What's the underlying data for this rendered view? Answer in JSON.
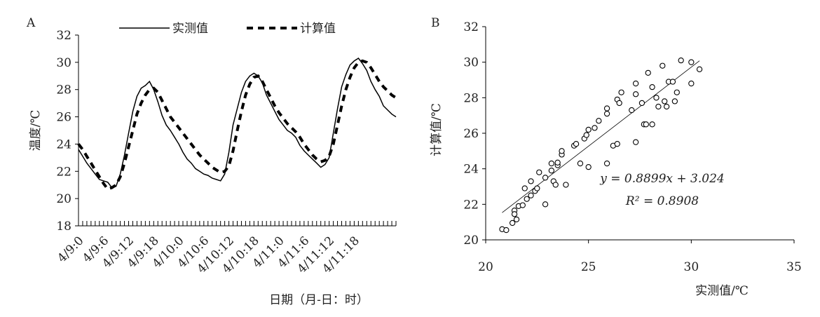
{
  "chart_data": [
    {
      "type": "line",
      "panel_label": "A",
      "ylabel": "温度/℃",
      "xlabel": "日期（月-日：时）",
      "ylim": [
        18,
        32
      ],
      "yticks": [
        18,
        20,
        22,
        24,
        26,
        28,
        30,
        32
      ],
      "categories": [
        "4/9:0",
        null,
        null,
        null,
        null,
        null,
        "4/9:6",
        null,
        null,
        null,
        null,
        null,
        "4/9:12",
        null,
        null,
        null,
        null,
        null,
        "4/9:18",
        null,
        null,
        null,
        null,
        null,
        "4/10:0",
        null,
        null,
        null,
        null,
        null,
        "4/10:6",
        null,
        null,
        null,
        null,
        null,
        "4/10:12",
        null,
        null,
        null,
        null,
        null,
        "4/10:18",
        null,
        null,
        null,
        null,
        null,
        "4/11:0",
        null,
        null,
        null,
        null,
        null,
        "4/11:6",
        null,
        null,
        null,
        null,
        null,
        "4/11:12",
        null,
        null,
        null,
        null,
        null,
        "4/11:18",
        null,
        null,
        null,
        null,
        null,
        null,
        null,
        null,
        null,
        null
      ],
      "series": [
        {
          "name": "实测值",
          "color": "#000000",
          "dash": "solid",
          "values": [
            23.6,
            23.1,
            22.6,
            22.2,
            21.8,
            21.4,
            21.3,
            21.2,
            20.8,
            20.9,
            21.8,
            23.2,
            24.8,
            26.4,
            27.5,
            28.1,
            28.3,
            28.6,
            28.0,
            27.1,
            26.1,
            25.4,
            25.0,
            24.5,
            24.0,
            23.4,
            22.9,
            22.6,
            22.2,
            22.0,
            21.8,
            21.7,
            21.5,
            21.4,
            21.3,
            21.8,
            23.4,
            25.4,
            26.6,
            27.8,
            28.6,
            29.0,
            29.2,
            29.0,
            28.5,
            27.6,
            27.0,
            26.4,
            25.8,
            25.4,
            25.0,
            24.8,
            24.5,
            23.9,
            23.5,
            23.2,
            22.9,
            22.6,
            22.3,
            22.5,
            23.0,
            24.8,
            26.6,
            28.2,
            29.1,
            29.8,
            30.1,
            30.3,
            29.9,
            29.4,
            28.6,
            28.0,
            27.5,
            26.8,
            26.5,
            26.2,
            26.0
          ]
        },
        {
          "name": "计算值",
          "color": "#000000",
          "dash": "dashed",
          "values": [
            24.0,
            23.6,
            23.1,
            22.6,
            22.1,
            21.6,
            21.1,
            20.7,
            20.8,
            21.0,
            21.6,
            22.6,
            23.8,
            25.0,
            26.2,
            27.0,
            27.6,
            28.0,
            28.1,
            27.8,
            27.2,
            26.6,
            26.0,
            25.6,
            25.2,
            24.8,
            24.4,
            24.0,
            23.6,
            23.2,
            22.9,
            22.6,
            22.3,
            22.1,
            21.9,
            22.0,
            22.4,
            23.5,
            25.0,
            26.4,
            27.6,
            28.4,
            28.9,
            29.0,
            28.6,
            28.0,
            27.4,
            26.8,
            26.3,
            25.9,
            25.5,
            25.2,
            24.9,
            24.5,
            24.0,
            23.6,
            23.2,
            22.9,
            22.7,
            22.8,
            23.1,
            24.0,
            25.4,
            26.8,
            28.0,
            28.9,
            29.6,
            30.0,
            30.1,
            30.0,
            29.6,
            29.1,
            28.6,
            28.2,
            27.9,
            27.6,
            27.4
          ]
        }
      ]
    },
    {
      "type": "scatter",
      "panel_label": "B",
      "xlabel": "实测值/℃",
      "ylabel": "计算值/℃",
      "xlim": [
        20,
        35
      ],
      "xticks": [
        20,
        25,
        30,
        35
      ],
      "ylim": [
        20,
        32
      ],
      "yticks": [
        20,
        22,
        24,
        26,
        28,
        30,
        32
      ],
      "color": "#000000",
      "x": [
        20.8,
        21.0,
        21.3,
        21.4,
        21.4,
        21.5,
        21.6,
        21.8,
        21.9,
        22.0,
        22.2,
        22.2,
        22.4,
        22.5,
        22.6,
        22.9,
        22.9,
        23.2,
        23.2,
        23.3,
        23.4,
        23.5,
        23.5,
        23.7,
        23.7,
        23.9,
        24.3,
        24.4,
        24.6,
        24.8,
        24.9,
        25.0,
        25.0,
        25.3,
        25.5,
        25.9,
        25.9,
        25.9,
        26.2,
        26.4,
        26.4,
        26.6,
        26.5,
        27.1,
        27.3,
        27.3,
        27.3,
        27.6,
        27.7,
        27.8,
        27.9,
        28.1,
        28.1,
        28.3,
        28.4,
        28.6,
        28.7,
        28.8,
        28.9,
        29.1,
        29.2,
        29.3,
        29.5,
        30.0,
        30.0,
        30.4
      ],
      "y": [
        20.6,
        20.55,
        20.95,
        21.65,
        21.45,
        21.15,
        21.9,
        21.95,
        22.9,
        22.3,
        22.5,
        23.3,
        22.75,
        22.9,
        23.8,
        22.0,
        23.5,
        23.9,
        24.3,
        23.3,
        23.1,
        24.2,
        24.35,
        24.8,
        25.0,
        23.1,
        25.3,
        25.4,
        24.3,
        25.7,
        25.9,
        24.1,
        26.2,
        26.3,
        26.7,
        24.3,
        27.1,
        27.4,
        25.3,
        25.4,
        27.9,
        28.3,
        27.7,
        27.3,
        25.5,
        28.8,
        28.2,
        27.7,
        26.5,
        26.5,
        29.4,
        26.5,
        28.6,
        28.0,
        27.5,
        29.8,
        27.8,
        27.5,
        28.9,
        28.9,
        27.8,
        28.3,
        30.1,
        30.0,
        28.8,
        29.6
      ],
      "trendline": {
        "slope": 0.8899,
        "intercept": 3.024,
        "x_range": [
          20.8,
          30.4
        ]
      },
      "annotations": [
        "y = 0.8899x + 3.024",
        "R² = 0.8908"
      ]
    }
  ]
}
